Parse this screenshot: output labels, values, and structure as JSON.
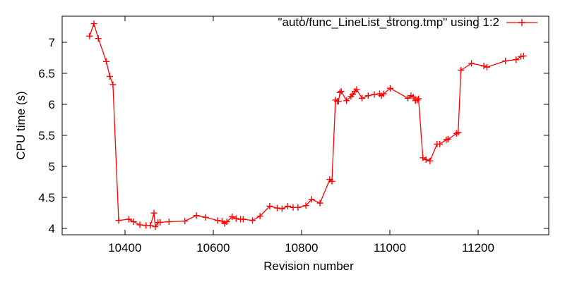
{
  "figure": {
    "background": "#ffffff",
    "axis_color": "#000000"
  },
  "chart_data": {
    "type": "line",
    "title": "",
    "xlabel": "Revision number",
    "ylabel": "CPU time (s)",
    "xlim": [
      10258,
      11360
    ],
    "ylim": [
      3.9,
      7.42
    ],
    "grid": false,
    "legend_position": "top-right-inside",
    "x_ticks": [
      10400,
      10600,
      10800,
      11000,
      11200
    ],
    "x_tick_labels": [
      "10400",
      "10600",
      "10800",
      "11000",
      "11200"
    ],
    "y_ticks": [
      4,
      4.5,
      5,
      5.5,
      6,
      6.5,
      7
    ],
    "y_tick_labels": [
      "4",
      "4.5",
      "5",
      "5.5",
      "6",
      "6.5",
      "7"
    ],
    "series": [
      {
        "name": "\"auto/func_LineList_strong.tmp\" using 1:2",
        "color": "#ff0000",
        "marker": "plus",
        "points": [
          [
            10320,
            7.1
          ],
          [
            10330,
            7.3
          ],
          [
            10340,
            7.06
          ],
          [
            10358,
            6.69
          ],
          [
            10366,
            6.45
          ],
          [
            10373,
            6.32
          ],
          [
            10386,
            4.13
          ],
          [
            10409,
            4.15
          ],
          [
            10420,
            4.11
          ],
          [
            10434,
            4.06
          ],
          [
            10448,
            4.05
          ],
          [
            10458,
            4.05
          ],
          [
            10466,
            4.25
          ],
          [
            10469,
            4.03
          ],
          [
            10475,
            4.1
          ],
          [
            10480,
            4.1
          ],
          [
            10500,
            4.11
          ],
          [
            10536,
            4.12
          ],
          [
            10562,
            4.21
          ],
          [
            10583,
            4.18
          ],
          [
            10610,
            4.13
          ],
          [
            10620,
            4.12
          ],
          [
            10626,
            4.08
          ],
          [
            10631,
            4.11
          ],
          [
            10643,
            4.19
          ],
          [
            10652,
            4.16
          ],
          [
            10662,
            4.15
          ],
          [
            10668,
            4.15
          ],
          [
            10689,
            4.13
          ],
          [
            10706,
            4.2
          ],
          [
            10728,
            4.36
          ],
          [
            10745,
            4.33
          ],
          [
            10756,
            4.32
          ],
          [
            10769,
            4.36
          ],
          [
            10781,
            4.34
          ],
          [
            10792,
            4.34
          ],
          [
            10810,
            4.37
          ],
          [
            10823,
            4.47
          ],
          [
            10842,
            4.41
          ],
          [
            10864,
            4.79
          ],
          [
            10869,
            4.76
          ],
          [
            10877,
            6.07
          ],
          [
            10881,
            6.05
          ],
          [
            10884,
            6.05
          ],
          [
            10887,
            6.19
          ],
          [
            10890,
            6.21
          ],
          [
            10902,
            6.06
          ],
          [
            10912,
            6.13
          ],
          [
            10916,
            6.16
          ],
          [
            10921,
            6.21
          ],
          [
            10925,
            6.24
          ],
          [
            10937,
            6.1
          ],
          [
            10951,
            6.14
          ],
          [
            10965,
            6.16
          ],
          [
            10977,
            6.17
          ],
          [
            10981,
            6.14
          ],
          [
            10986,
            6.17
          ],
          [
            11001,
            6.26
          ],
          [
            11041,
            6.1
          ],
          [
            11048,
            6.14
          ],
          [
            11053,
            6.12
          ],
          [
            11058,
            6.06
          ],
          [
            11062,
            6.07
          ],
          [
            11065,
            6.09
          ],
          [
            11075,
            5.14
          ],
          [
            11082,
            5.11
          ],
          [
            11091,
            5.09
          ],
          [
            11107,
            5.36
          ],
          [
            11113,
            5.36
          ],
          [
            11128,
            5.43
          ],
          [
            11132,
            5.44
          ],
          [
            11151,
            5.53
          ],
          [
            11155,
            5.55
          ],
          [
            11161,
            6.55
          ],
          [
            11185,
            6.66
          ],
          [
            11213,
            6.62
          ],
          [
            11220,
            6.6
          ],
          [
            11262,
            6.7
          ],
          [
            11286,
            6.72
          ],
          [
            11297,
            6.77
          ],
          [
            11303,
            6.78
          ]
        ]
      }
    ]
  }
}
